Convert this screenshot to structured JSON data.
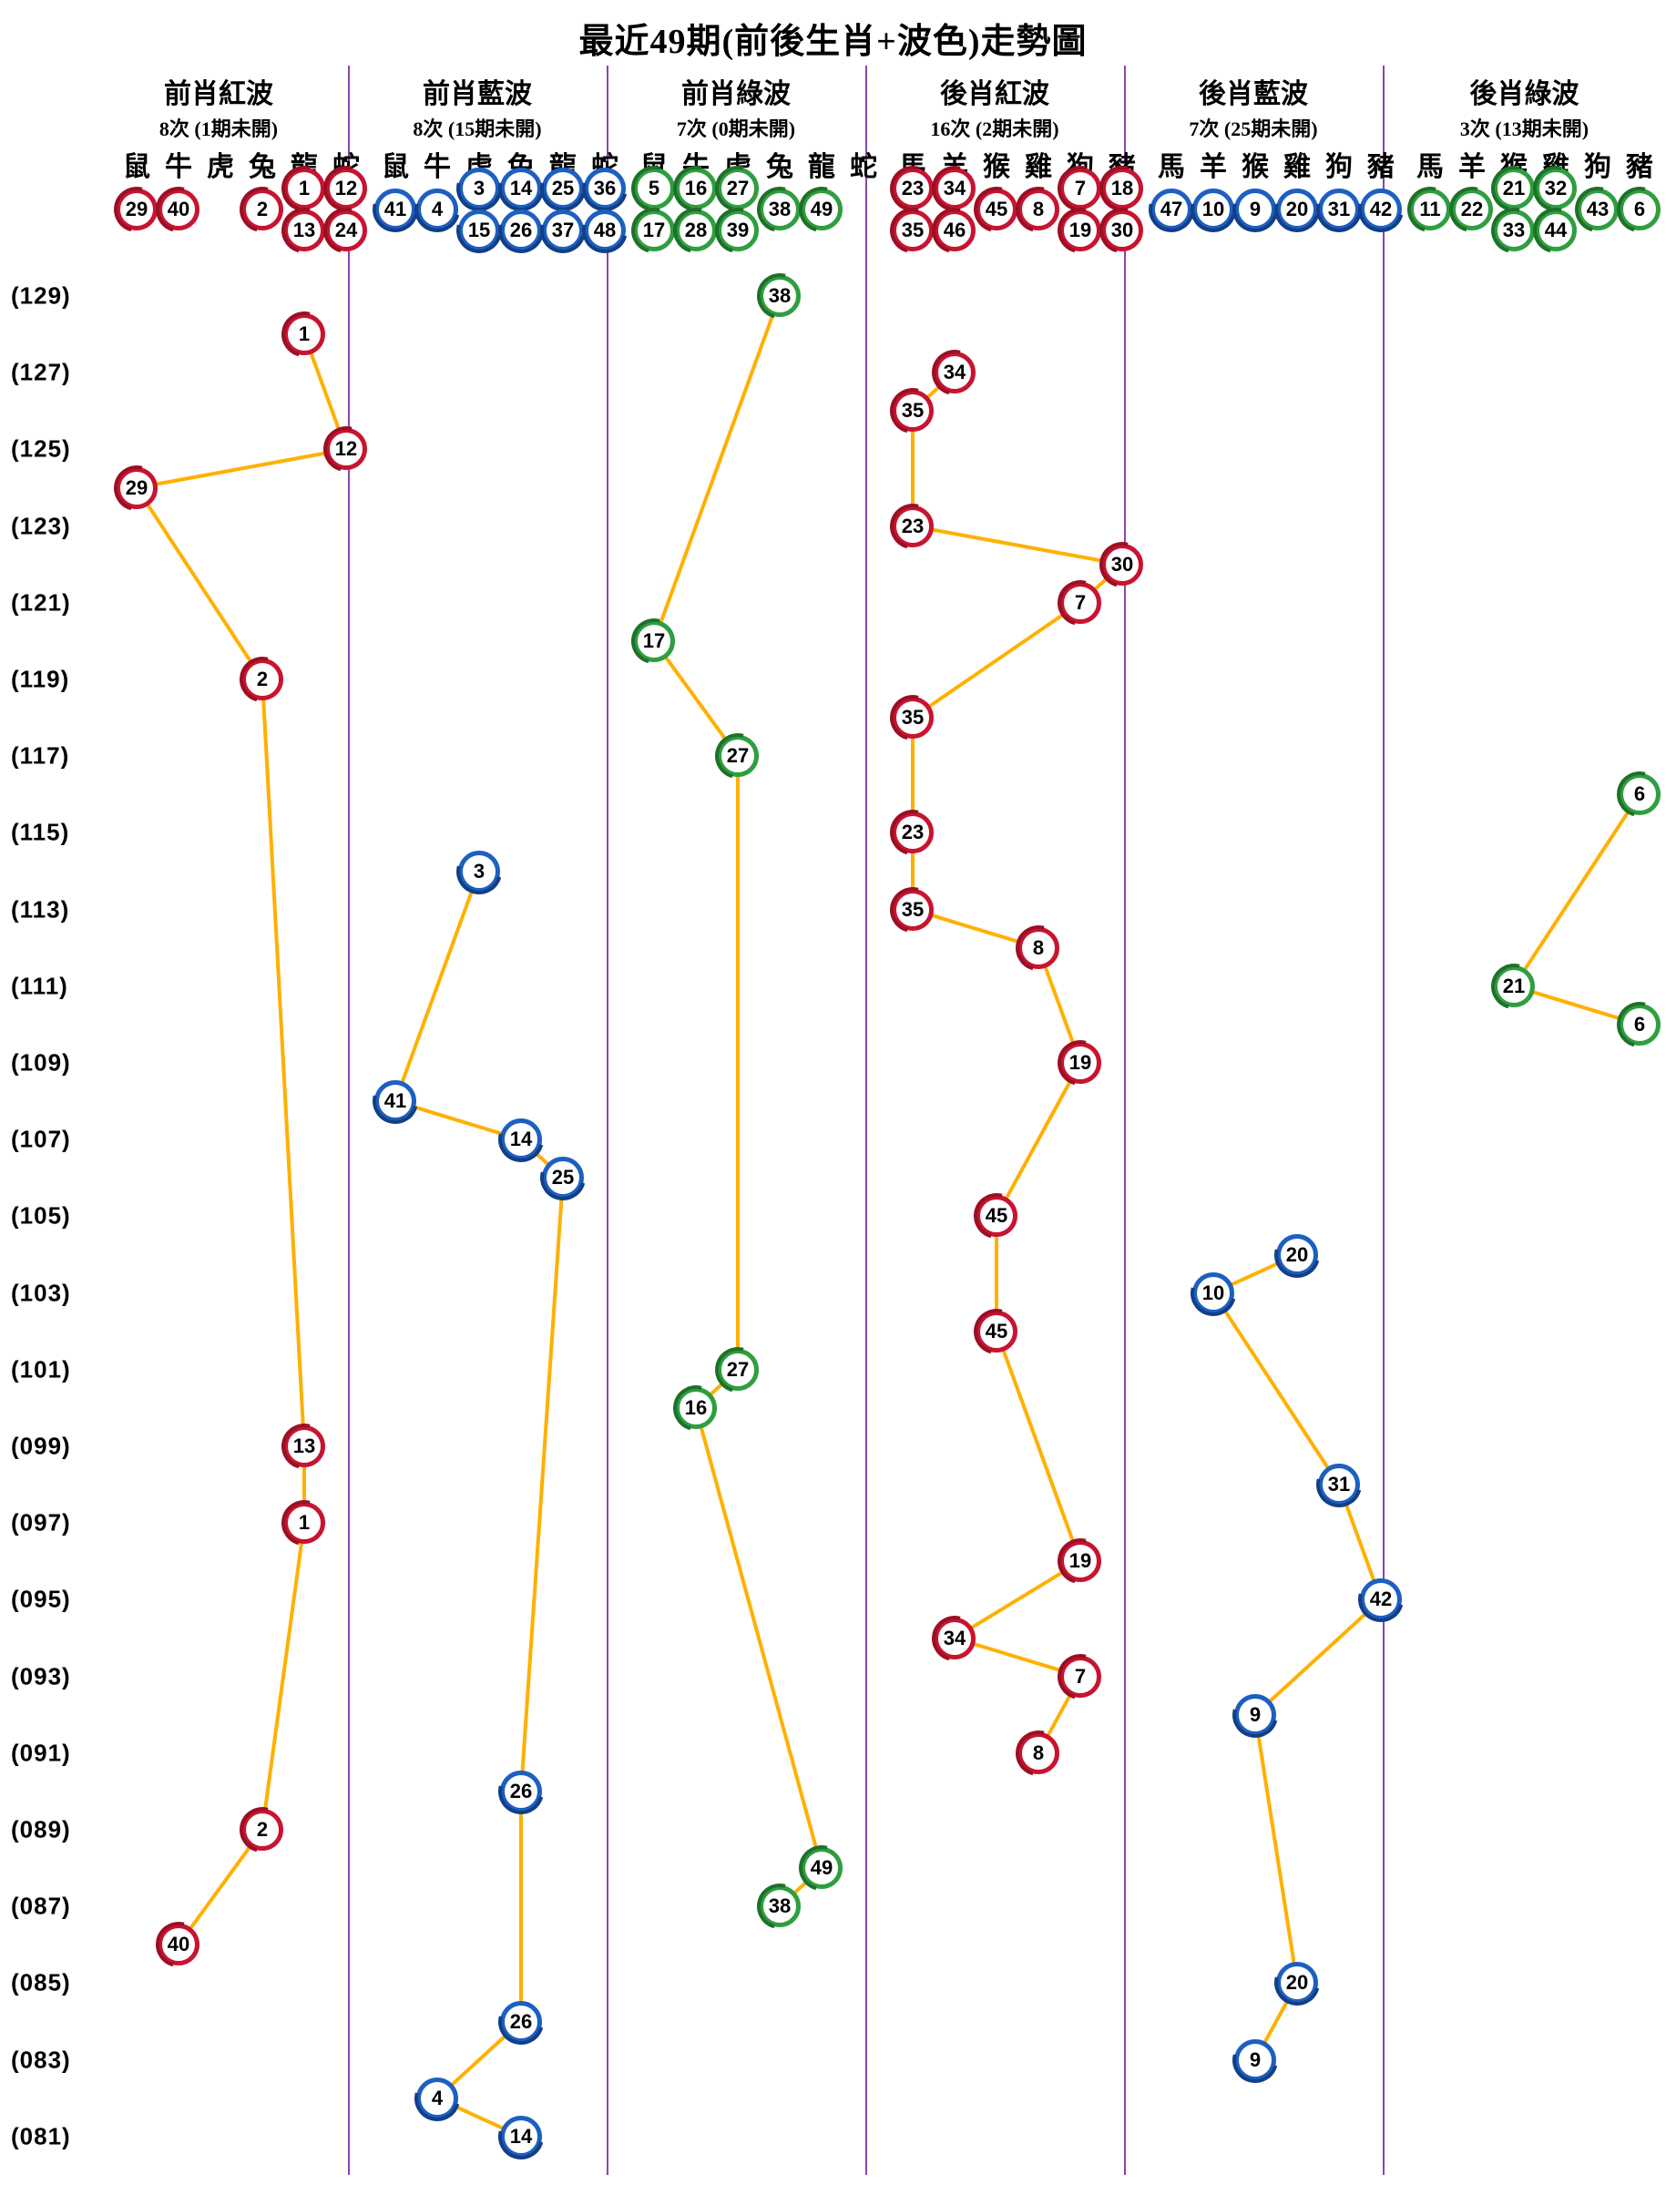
{
  "title": "最近49期(前後生肖+波色)走勢圖",
  "colors": {
    "red": "#c81430",
    "blue": "#1d5fc2",
    "green": "#2f9e3f",
    "red_dark": "#9a0f24",
    "blue_dark": "#123f85",
    "green_dark": "#1f7029",
    "line": "#ffb000",
    "divider": "#8a46a8",
    "text": "#000000"
  },
  "y_axis": {
    "top_period": 129,
    "bottom_period": 81,
    "labels": [
      "(129)",
      "(127)",
      "(125)",
      "(123)",
      "(121)",
      "(119)",
      "(117)",
      "(115)",
      "(113)",
      "(111)",
      "(109)",
      "(107)",
      "(105)",
      "(103)",
      "(101)",
      "(099)",
      "(097)",
      "(095)",
      "(093)",
      "(091)",
      "(089)",
      "(087)",
      "(085)",
      "(083)",
      "(081)"
    ]
  },
  "chart_data": {
    "type": "line",
    "title": "最近49期(前後生肖+波色)走勢圖",
    "orientation": "periods 129 (top) to 81 (bottom), one row per period, x = zodiac sub-column",
    "legend_position": "none",
    "grid": "off",
    "columns": [
      {
        "title": "前肖紅波",
        "stats": "8次 (1期未開)",
        "color": "red",
        "zodiacs": [
          "鼠",
          "牛",
          "虎",
          "兔",
          "龍",
          "蛇"
        ],
        "header_balls": [
          [
            29
          ],
          [
            40
          ],
          [],
          [
            2
          ],
          [
            1,
            13
          ],
          [
            12,
            24
          ]
        ],
        "points": [
          {
            "period": 128,
            "value": 1,
            "zodiac": "龍",
            "zi": 4
          },
          {
            "period": 125,
            "value": 12,
            "zodiac": "蛇",
            "zi": 5
          },
          {
            "period": 124,
            "value": 29,
            "zodiac": "鼠",
            "zi": 0
          },
          {
            "period": 119,
            "value": 2,
            "zodiac": "兔",
            "zi": 3
          },
          {
            "period": 99,
            "value": 13,
            "zodiac": "龍",
            "zi": 4
          },
          {
            "period": 97,
            "value": 1,
            "zodiac": "龍",
            "zi": 4
          },
          {
            "period": 89,
            "value": 2,
            "zodiac": "兔",
            "zi": 3
          },
          {
            "period": 86,
            "value": 40,
            "zodiac": "牛",
            "zi": 1
          }
        ]
      },
      {
        "title": "前肖藍波",
        "stats": "8次 (15期未開)",
        "color": "blue",
        "zodiacs": [
          "鼠",
          "牛",
          "虎",
          "兔",
          "龍",
          "蛇"
        ],
        "header_balls": [
          [
            41
          ],
          [
            4
          ],
          [
            3,
            15
          ],
          [
            14,
            26
          ],
          [
            25,
            37
          ],
          [
            36,
            48
          ]
        ],
        "points": [
          {
            "period": 114,
            "value": 3,
            "zodiac": "虎",
            "zi": 2
          },
          {
            "period": 108,
            "value": 41,
            "zodiac": "鼠",
            "zi": 0
          },
          {
            "period": 107,
            "value": 14,
            "zodiac": "兔",
            "zi": 3
          },
          {
            "period": 106,
            "value": 25,
            "zodiac": "龍",
            "zi": 4
          },
          {
            "period": 90,
            "value": 26,
            "zodiac": "兔",
            "zi": 3
          },
          {
            "period": 84,
            "value": 26,
            "zodiac": "兔",
            "zi": 3
          },
          {
            "period": 82,
            "value": 4,
            "zodiac": "牛",
            "zi": 1
          },
          {
            "period": 81,
            "value": 14,
            "zodiac": "兔",
            "zi": 3
          }
        ]
      },
      {
        "title": "前肖綠波",
        "stats": "7次 (0期未開)",
        "color": "green",
        "zodiacs": [
          "鼠",
          "牛",
          "虎",
          "兔",
          "龍",
          "蛇"
        ],
        "header_balls": [
          [
            5,
            17
          ],
          [
            16,
            28
          ],
          [
            27,
            39
          ],
          [
            38
          ],
          [
            49
          ],
          []
        ],
        "points": [
          {
            "period": 129,
            "value": 38,
            "zodiac": "兔",
            "zi": 3
          },
          {
            "period": 120,
            "value": 17,
            "zodiac": "鼠",
            "zi": 0
          },
          {
            "period": 117,
            "value": 27,
            "zodiac": "虎",
            "zi": 2
          },
          {
            "period": 101,
            "value": 27,
            "zodiac": "虎",
            "zi": 2
          },
          {
            "period": 100,
            "value": 16,
            "zodiac": "牛",
            "zi": 1
          },
          {
            "period": 88,
            "value": 49,
            "zodiac": "龍",
            "zi": 4
          },
          {
            "period": 87,
            "value": 38,
            "zodiac": "兔",
            "zi": 3
          }
        ]
      },
      {
        "title": "後肖紅波",
        "stats": "16次 (2期未開)",
        "color": "red",
        "zodiacs": [
          "馬",
          "羊",
          "猴",
          "雞",
          "狗",
          "豬"
        ],
        "header_balls": [
          [
            23,
            35
          ],
          [
            34,
            46
          ],
          [
            45
          ],
          [
            8
          ],
          [
            7,
            19
          ],
          [
            18,
            30
          ]
        ],
        "points": [
          {
            "period": 127,
            "value": 34,
            "zodiac": "羊",
            "zi": 1
          },
          {
            "period": 126,
            "value": 35,
            "zodiac": "馬",
            "zi": 0
          },
          {
            "period": 123,
            "value": 23,
            "zodiac": "馬",
            "zi": 0
          },
          {
            "period": 122,
            "value": 30,
            "zodiac": "豬",
            "zi": 5
          },
          {
            "period": 121,
            "value": 7,
            "zodiac": "狗",
            "zi": 4
          },
          {
            "period": 118,
            "value": 35,
            "zodiac": "馬",
            "zi": 0
          },
          {
            "period": 115,
            "value": 23,
            "zodiac": "馬",
            "zi": 0
          },
          {
            "period": 113,
            "value": 35,
            "zodiac": "馬",
            "zi": 0
          },
          {
            "period": 112,
            "value": 8,
            "zodiac": "雞",
            "zi": 3
          },
          {
            "period": 109,
            "value": 19,
            "zodiac": "狗",
            "zi": 4
          },
          {
            "period": 105,
            "value": 45,
            "zodiac": "猴",
            "zi": 2
          },
          {
            "period": 102,
            "value": 45,
            "zodiac": "猴",
            "zi": 2
          },
          {
            "period": 96,
            "value": 19,
            "zodiac": "狗",
            "zi": 4
          },
          {
            "period": 94,
            "value": 34,
            "zodiac": "羊",
            "zi": 1
          },
          {
            "period": 93,
            "value": 7,
            "zodiac": "狗",
            "zi": 4
          },
          {
            "period": 91,
            "value": 8,
            "zodiac": "雞",
            "zi": 3
          }
        ]
      },
      {
        "title": "後肖藍波",
        "stats": "7次 (25期未開)",
        "color": "blue",
        "zodiacs": [
          "馬",
          "羊",
          "猴",
          "雞",
          "狗",
          "豬"
        ],
        "header_balls": [
          [
            47
          ],
          [
            10
          ],
          [
            9
          ],
          [
            20
          ],
          [
            31
          ],
          [
            42
          ]
        ],
        "points": [
          {
            "period": 104,
            "value": 20,
            "zodiac": "雞",
            "zi": 3
          },
          {
            "period": 103,
            "value": 10,
            "zodiac": "羊",
            "zi": 1
          },
          {
            "period": 98,
            "value": 31,
            "zodiac": "狗",
            "zi": 4
          },
          {
            "period": 95,
            "value": 42,
            "zodiac": "豬",
            "zi": 5
          },
          {
            "period": 92,
            "value": 9,
            "zodiac": "猴",
            "zi": 2
          },
          {
            "period": 85,
            "value": 20,
            "zodiac": "雞",
            "zi": 3
          },
          {
            "period": 83,
            "value": 9,
            "zodiac": "猴",
            "zi": 2
          }
        ]
      },
      {
        "title": "後肖綠波",
        "stats": "3次 (13期未開)",
        "color": "green",
        "zodiacs": [
          "馬",
          "羊",
          "猴",
          "雞",
          "狗",
          "豬"
        ],
        "header_balls": [
          [
            11
          ],
          [
            22
          ],
          [
            21,
            33
          ],
          [
            32,
            44
          ],
          [
            43
          ],
          [
            6
          ]
        ],
        "points": [
          {
            "period": 116,
            "value": 6,
            "zodiac": "豬",
            "zi": 5
          },
          {
            "period": 111,
            "value": 21,
            "zodiac": "猴",
            "zi": 2
          },
          {
            "period": 110,
            "value": 6,
            "zodiac": "豬",
            "zi": 5
          }
        ]
      }
    ]
  }
}
